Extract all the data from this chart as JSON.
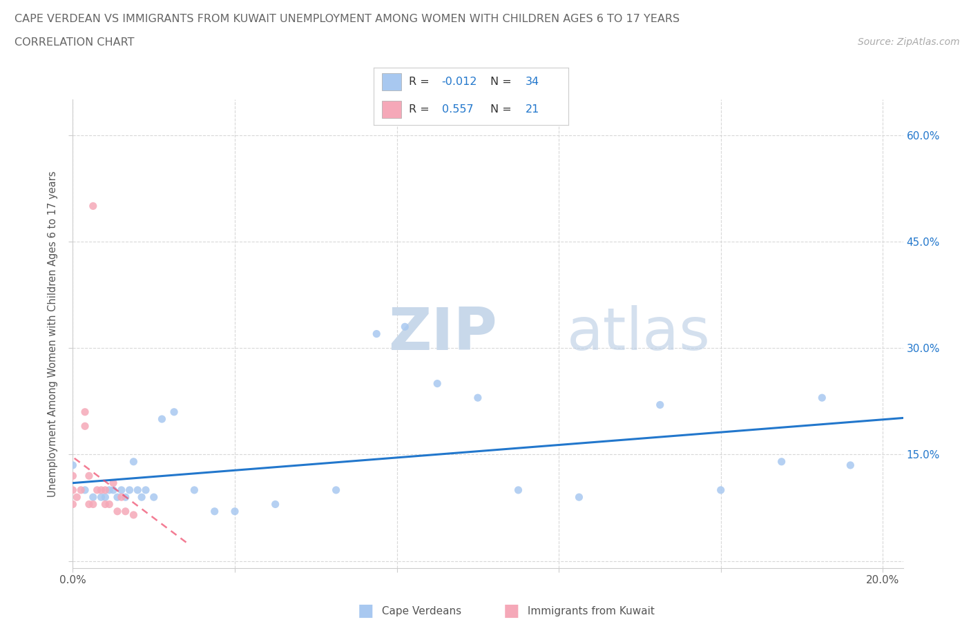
{
  "title_line1": "CAPE VERDEAN VS IMMIGRANTS FROM KUWAIT UNEMPLOYMENT AMONG WOMEN WITH CHILDREN AGES 6 TO 17 YEARS",
  "title_line2": "CORRELATION CHART",
  "source_text": "Source: ZipAtlas.com",
  "ylabel": "Unemployment Among Women with Children Ages 6 to 17 years",
  "xlim": [
    0.0,
    0.205
  ],
  "ylim": [
    -0.01,
    0.65
  ],
  "xtick_vals": [
    0.0,
    0.04,
    0.08,
    0.12,
    0.16,
    0.2
  ],
  "ytick_vals": [
    0.0,
    0.15,
    0.3,
    0.45,
    0.6
  ],
  "cv_color": "#a8c8f0",
  "kw_color": "#f5a8b8",
  "trend_cv_color": "#2277cc",
  "trend_kw_color": "#ee4466",
  "grid_color": "#d8d8d8",
  "stat_color": "#2277cc",
  "cv_r": "-0.012",
  "cv_n": "34",
  "kw_r": "0.557",
  "kw_n": "21",
  "cape_verdeans_x": [
    0.0,
    0.003,
    0.005,
    0.007,
    0.008,
    0.009,
    0.01,
    0.011,
    0.012,
    0.013,
    0.014,
    0.015,
    0.016,
    0.017,
    0.018,
    0.02,
    0.022,
    0.025,
    0.03,
    0.035,
    0.04,
    0.05,
    0.065,
    0.075,
    0.082,
    0.09,
    0.1,
    0.11,
    0.125,
    0.145,
    0.16,
    0.175,
    0.185,
    0.192
  ],
  "cape_verdeans_y": [
    0.135,
    0.1,
    0.09,
    0.09,
    0.09,
    0.1,
    0.1,
    0.09,
    0.1,
    0.09,
    0.1,
    0.14,
    0.1,
    0.09,
    0.1,
    0.09,
    0.2,
    0.21,
    0.1,
    0.07,
    0.07,
    0.08,
    0.1,
    0.32,
    0.33,
    0.25,
    0.23,
    0.1,
    0.09,
    0.22,
    0.1,
    0.14,
    0.23,
    0.135
  ],
  "kuwait_x": [
    0.0,
    0.0,
    0.0,
    0.001,
    0.002,
    0.003,
    0.003,
    0.004,
    0.004,
    0.005,
    0.005,
    0.006,
    0.007,
    0.008,
    0.008,
    0.009,
    0.01,
    0.011,
    0.012,
    0.013,
    0.015
  ],
  "kuwait_y": [
    0.08,
    0.1,
    0.12,
    0.09,
    0.1,
    0.19,
    0.21,
    0.12,
    0.08,
    0.5,
    0.08,
    0.1,
    0.1,
    0.1,
    0.08,
    0.08,
    0.11,
    0.07,
    0.09,
    0.07,
    0.065
  ]
}
